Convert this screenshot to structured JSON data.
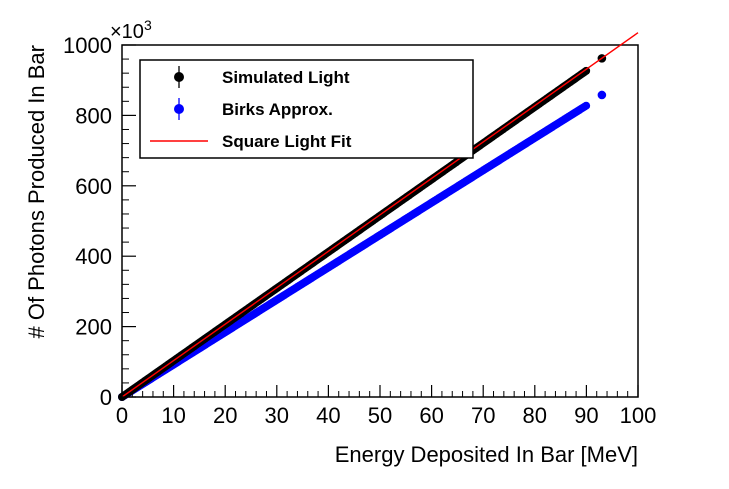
{
  "chart_data": {
    "type": "scatter",
    "xlabel": "Energy Deposited In Bar [MeV]",
    "ylabel": "# Of Photons Produced In Bar",
    "y_multiplier_label": "×10",
    "y_multiplier_exponent": "3",
    "xlim": [
      0,
      100
    ],
    "ylim": [
      0,
      1000
    ],
    "x_ticks": [
      "0",
      "10",
      "20",
      "30",
      "40",
      "50",
      "60",
      "70",
      "80",
      "90",
      "100"
    ],
    "y_ticks": [
      "0",
      "200",
      "400",
      "600",
      "800",
      "1000"
    ],
    "grid": false,
    "legend_position": "top-left",
    "series": [
      {
        "name": "Simulated Light",
        "color": "#000000",
        "marker": "circle-with-error-bar",
        "x": [
          0,
          10,
          20,
          30,
          40,
          50,
          60,
          70,
          80,
          90,
          93
        ],
        "y": [
          0,
          103,
          206,
          309,
          412,
          515,
          618,
          721,
          824,
          927,
          962
        ]
      },
      {
        "name": "Birks Approx.",
        "color": "#0000ff",
        "marker": "circle-with-error-bar",
        "x": [
          0,
          10,
          20,
          30,
          40,
          50,
          60,
          70,
          80,
          90,
          93
        ],
        "y": [
          0,
          92,
          184,
          276,
          368,
          460,
          552,
          644,
          736,
          828,
          858
        ]
      },
      {
        "name": "Square Light Fit",
        "color": "#ff0000",
        "marker": "line",
        "x": [
          0,
          100
        ],
        "y": [
          0,
          1035
        ]
      }
    ]
  }
}
